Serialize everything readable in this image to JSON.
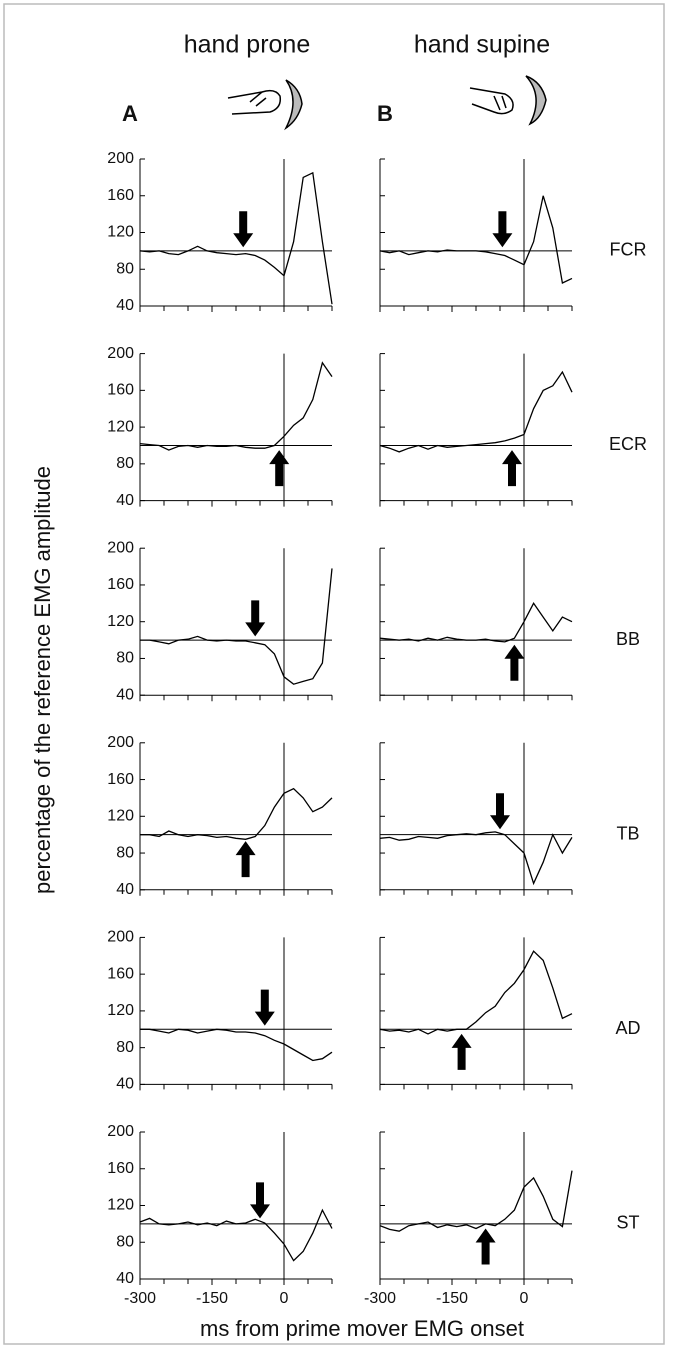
{
  "column_titles": [
    "hand prone",
    "hand supine"
  ],
  "panel_labels": [
    "A",
    "B"
  ],
  "y_label": "percentage of the reference EMG amplitude",
  "x_label": "ms from prime mover EMG onset",
  "chart_data": [
    {
      "type": "line",
      "x": [
        -300,
        -280,
        -260,
        -240,
        -220,
        -200,
        -180,
        -160,
        -140,
        -120,
        -100,
        -80,
        -60,
        -40,
        -20,
        0,
        20,
        40,
        60,
        80,
        100
      ],
      "values": [
        100,
        99,
        100,
        97,
        96,
        100,
        105,
        100,
        98,
        97,
        96,
        97,
        95,
        90,
        82,
        73,
        110,
        180,
        185,
        110,
        42
      ],
      "xlim": [
        -300,
        100
      ],
      "ylim": [
        40,
        200
      ],
      "xticks": [
        -300,
        -150,
        0
      ],
      "yticks": [
        40,
        80,
        120,
        160,
        200
      ],
      "hline": 100,
      "vline": 0,
      "arrow": {
        "x": -85,
        "y": 104,
        "direction": "down"
      },
      "color": "#000000"
    },
    {
      "type": "line",
      "name": "FCR",
      "x": [
        -300,
        -280,
        -260,
        -240,
        -220,
        -200,
        -180,
        -160,
        -140,
        -120,
        -100,
        -80,
        -60,
        -40,
        -20,
        0,
        20,
        40,
        60,
        80,
        100
      ],
      "values": [
        100,
        98,
        100,
        96,
        98,
        100,
        99,
        101,
        100,
        100,
        100,
        99,
        97,
        95,
        90,
        85,
        110,
        160,
        125,
        65,
        70
      ],
      "xlim": [
        -300,
        100
      ],
      "ylim": [
        40,
        200
      ],
      "xticks": [
        -300,
        -150,
        0
      ],
      "yticks": [
        40,
        80,
        120,
        160,
        200
      ],
      "hline": 100,
      "vline": 0,
      "arrow": {
        "x": -45,
        "y": 104,
        "direction": "down"
      },
      "color": "#000000"
    },
    {
      "type": "line",
      "x": [
        -300,
        -280,
        -260,
        -240,
        -220,
        -200,
        -180,
        -160,
        -140,
        -120,
        -100,
        -80,
        -60,
        -40,
        -20,
        0,
        20,
        40,
        60,
        80,
        100
      ],
      "values": [
        102,
        101,
        100,
        95,
        99,
        100,
        98,
        100,
        99,
        99,
        100,
        98,
        97,
        97,
        100,
        110,
        122,
        130,
        150,
        190,
        175
      ],
      "xlim": [
        -300,
        100
      ],
      "ylim": [
        40,
        200
      ],
      "xticks": [
        -300,
        -150,
        0
      ],
      "yticks": [
        40,
        80,
        120,
        160,
        200
      ],
      "hline": 100,
      "vline": 0,
      "arrow": {
        "x": -10,
        "y": 95,
        "direction": "up"
      },
      "color": "#000000"
    },
    {
      "type": "line",
      "name": "ECR",
      "x": [
        -300,
        -280,
        -260,
        -240,
        -220,
        -200,
        -180,
        -160,
        -140,
        -120,
        -100,
        -80,
        -60,
        -40,
        -20,
        0,
        20,
        40,
        60,
        80,
        100
      ],
      "values": [
        100,
        97,
        93,
        97,
        100,
        96,
        100,
        98,
        99,
        100,
        101,
        102,
        103,
        105,
        108,
        112,
        140,
        160,
        165,
        180,
        158
      ],
      "xlim": [
        -300,
        100
      ],
      "ylim": [
        40,
        200
      ],
      "xticks": [
        -300,
        -150,
        0
      ],
      "yticks": [
        40,
        80,
        120,
        160,
        200
      ],
      "hline": 100,
      "vline": 0,
      "arrow": {
        "x": -25,
        "y": 95,
        "direction": "up"
      },
      "color": "#000000"
    },
    {
      "type": "line",
      "x": [
        -300,
        -280,
        -260,
        -240,
        -220,
        -200,
        -180,
        -160,
        -140,
        -120,
        -100,
        -80,
        -60,
        -40,
        -20,
        0,
        20,
        40,
        60,
        80,
        100
      ],
      "values": [
        100,
        100,
        98,
        96,
        100,
        101,
        104,
        100,
        99,
        100,
        99,
        99,
        97,
        95,
        85,
        60,
        52,
        55,
        58,
        75,
        178
      ],
      "xlim": [
        -300,
        100
      ],
      "ylim": [
        40,
        200
      ],
      "xticks": [
        -300,
        -150,
        0
      ],
      "yticks": [
        40,
        80,
        120,
        160,
        200
      ],
      "hline": 100,
      "vline": 0,
      "arrow": {
        "x": -60,
        "y": 104,
        "direction": "down"
      },
      "color": "#000000"
    },
    {
      "type": "line",
      "name": "BB",
      "x": [
        -300,
        -280,
        -260,
        -240,
        -220,
        -200,
        -180,
        -160,
        -140,
        -120,
        -100,
        -80,
        -60,
        -40,
        -20,
        0,
        20,
        40,
        60,
        80,
        100
      ],
      "values": [
        102,
        101,
        100,
        101,
        99,
        102,
        100,
        103,
        101,
        100,
        100,
        101,
        99,
        98,
        102,
        120,
        140,
        125,
        110,
        125,
        120
      ],
      "xlim": [
        -300,
        100
      ],
      "ylim": [
        40,
        200
      ],
      "xticks": [
        -300,
        -150,
        0
      ],
      "yticks": [
        40,
        80,
        120,
        160,
        200
      ],
      "hline": 100,
      "vline": 0,
      "arrow": {
        "x": -20,
        "y": 95,
        "direction": "up"
      },
      "color": "#000000"
    },
    {
      "type": "line",
      "x": [
        -300,
        -280,
        -260,
        -240,
        -220,
        -200,
        -180,
        -160,
        -140,
        -120,
        -100,
        -80,
        -60,
        -40,
        -20,
        0,
        20,
        40,
        60,
        80,
        100
      ],
      "values": [
        100,
        100,
        98,
        104,
        100,
        98,
        100,
        99,
        97,
        98,
        96,
        95,
        98,
        110,
        130,
        145,
        150,
        140,
        125,
        130,
        140
      ],
      "xlim": [
        -300,
        100
      ],
      "ylim": [
        40,
        200
      ],
      "xticks": [
        -300,
        -150,
        0
      ],
      "yticks": [
        40,
        80,
        120,
        160,
        200
      ],
      "hline": 100,
      "vline": 0,
      "arrow": {
        "x": -80,
        "y": 93,
        "direction": "up"
      },
      "color": "#000000"
    },
    {
      "type": "line",
      "name": "TB",
      "x": [
        -300,
        -280,
        -260,
        -240,
        -220,
        -200,
        -180,
        -160,
        -140,
        -120,
        -100,
        -80,
        -60,
        -40,
        -20,
        0,
        20,
        40,
        60,
        80,
        100
      ],
      "values": [
        96,
        97,
        94,
        95,
        98,
        97,
        96,
        99,
        100,
        101,
        100,
        102,
        103,
        100,
        90,
        80,
        47,
        70,
        100,
        80,
        97
      ],
      "xlim": [
        -300,
        100
      ],
      "ylim": [
        40,
        200
      ],
      "xticks": [
        -300,
        -150,
        0
      ],
      "yticks": [
        40,
        80,
        120,
        160,
        200
      ],
      "hline": 100,
      "vline": 0,
      "arrow": {
        "x": -50,
        "y": 106,
        "direction": "down"
      },
      "color": "#000000"
    },
    {
      "type": "line",
      "x": [
        -300,
        -280,
        -260,
        -240,
        -220,
        -200,
        -180,
        -160,
        -140,
        -120,
        -100,
        -80,
        -60,
        -40,
        -20,
        0,
        20,
        40,
        60,
        80,
        100
      ],
      "values": [
        100,
        100,
        98,
        96,
        100,
        99,
        96,
        98,
        100,
        99,
        97,
        97,
        96,
        93,
        88,
        84,
        78,
        72,
        66,
        68,
        75
      ],
      "xlim": [
        -300,
        100
      ],
      "ylim": [
        40,
        200
      ],
      "xticks": [
        -300,
        -150,
        0
      ],
      "yticks": [
        40,
        80,
        120,
        160,
        200
      ],
      "hline": 100,
      "vline": 0,
      "arrow": {
        "x": -40,
        "y": 104,
        "direction": "down"
      },
      "color": "#000000"
    },
    {
      "type": "line",
      "name": "AD",
      "x": [
        -300,
        -280,
        -260,
        -240,
        -220,
        -200,
        -180,
        -160,
        -140,
        -120,
        -100,
        -80,
        -60,
        -40,
        -20,
        0,
        20,
        40,
        60,
        80,
        100
      ],
      "values": [
        100,
        98,
        99,
        97,
        100,
        95,
        100,
        98,
        100,
        100,
        108,
        118,
        125,
        140,
        150,
        165,
        185,
        175,
        145,
        112,
        117
      ],
      "xlim": [
        -300,
        100
      ],
      "ylim": [
        40,
        200
      ],
      "xticks": [
        -300,
        -150,
        0
      ],
      "yticks": [
        40,
        80,
        120,
        160,
        200
      ],
      "hline": 100,
      "vline": 0,
      "arrow": {
        "x": -130,
        "y": 95,
        "direction": "up"
      },
      "color": "#000000"
    },
    {
      "type": "line",
      "x": [
        -300,
        -280,
        -260,
        -240,
        -220,
        -200,
        -180,
        -160,
        -140,
        -120,
        -100,
        -80,
        -60,
        -40,
        -20,
        0,
        20,
        40,
        60,
        80,
        100
      ],
      "values": [
        102,
        106,
        100,
        99,
        100,
        102,
        99,
        101,
        98,
        103,
        100,
        101,
        105,
        101,
        90,
        78,
        60,
        70,
        90,
        115,
        95
      ],
      "xlim": [
        -300,
        100
      ],
      "ylim": [
        40,
        200
      ],
      "xticks": [
        -300,
        -150,
        0
      ],
      "yticks": [
        40,
        80,
        120,
        160,
        200
      ],
      "hline": 100,
      "vline": 0,
      "arrow": {
        "x": -50,
        "y": 106,
        "direction": "down"
      },
      "color": "#000000"
    },
    {
      "type": "line",
      "name": "ST",
      "x": [
        -300,
        -280,
        -260,
        -240,
        -220,
        -200,
        -180,
        -160,
        -140,
        -120,
        -100,
        -80,
        -60,
        -40,
        -20,
        0,
        20,
        40,
        60,
        80,
        100
      ],
      "values": [
        98,
        94,
        92,
        98,
        100,
        102,
        96,
        99,
        97,
        99,
        95,
        100,
        98,
        105,
        115,
        140,
        150,
        130,
        105,
        97,
        158
      ],
      "xlim": [
        -300,
        100
      ],
      "ylim": [
        40,
        200
      ],
      "xticks": [
        -300,
        -150,
        0
      ],
      "yticks": [
        40,
        80,
        120,
        160,
        200
      ],
      "hline": 100,
      "vline": 0,
      "arrow": {
        "x": -80,
        "y": 95,
        "direction": "up"
      },
      "color": "#000000"
    }
  ]
}
